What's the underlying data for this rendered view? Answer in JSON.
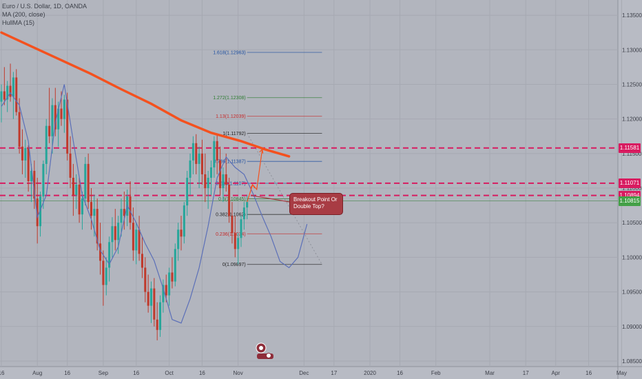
{
  "legend": {
    "symbol": "Euro / U.S. Dollar, 1D, OANDA",
    "ma": "MA (200, close)",
    "hull": "HullMA (15)"
  },
  "colors": {
    "background": "#b2b5be",
    "grid": "#a6a9b2",
    "up_candle": "#26a69a",
    "down_candle": "#c0392b",
    "ma200": "#f4511e",
    "hull": "#5b6fb8",
    "red_line": "#d81b60",
    "callout": "#a83c44"
  },
  "callout": {
    "text_line1": "Breakout Point Or",
    "text_line2": "Double Top?"
  },
  "price_tags": [
    {
      "label": "1.11581",
      "price": 1.11581,
      "color": "#d81b60"
    },
    {
      "label": "1.11071",
      "price": 1.11071,
      "color": "#d81b60"
    },
    {
      "label": "1.10894",
      "price": 1.10894,
      "color": "#d81b60"
    },
    {
      "label": "1.10815",
      "price": 1.10815,
      "color": "#43a047"
    }
  ],
  "chart_data": {
    "type": "candlestick",
    "title": "Euro / U.S. Dollar, 1D, OANDA",
    "ylim": [
      1.0842,
      1.1372
    ],
    "y_ticks": [
      {
        "value": 1.135,
        "label": "1.13500"
      },
      {
        "value": 1.13,
        "label": "1.13000"
      },
      {
        "value": 1.125,
        "label": "1.12500"
      },
      {
        "value": 1.12,
        "label": "1.12000"
      },
      {
        "value": 1.115,
        "label": "1.11500"
      },
      {
        "value": 1.11,
        "label": "1.11000"
      },
      {
        "value": 1.105,
        "label": "1.10500"
      },
      {
        "value": 1.1,
        "label": "1.10000"
      },
      {
        "value": 1.095,
        "label": "1.09500"
      },
      {
        "value": 1.09,
        "label": "1.09000"
      },
      {
        "value": 1.085,
        "label": "1.08500"
      }
    ],
    "x_ticks": [
      {
        "label": "16",
        "bar": 0
      },
      {
        "label": "Aug",
        "bar": 12
      },
      {
        "label": "16",
        "bar": 22
      },
      {
        "label": "Sep",
        "bar": 34
      },
      {
        "label": "16",
        "bar": 45
      },
      {
        "label": "Oct",
        "bar": 56
      },
      {
        "label": "16",
        "bar": 67
      },
      {
        "label": "Nov",
        "bar": 79
      },
      {
        "label": "Dec",
        "bar": 101
      },
      {
        "label": "17",
        "bar": 111
      },
      {
        "label": "2020",
        "bar": 123
      },
      {
        "label": "16",
        "bar": 133
      },
      {
        "label": "Feb",
        "bar": 145
      },
      {
        "label": "Mar",
        "bar": 163
      },
      {
        "label": "17",
        "bar": 175
      },
      {
        "label": "Apr",
        "bar": 185
      },
      {
        "label": "16",
        "bar": 196
      },
      {
        "label": "May",
        "bar": 207
      }
    ],
    "horizontal_levels": [
      1.11581,
      1.11071,
      1.10894,
      1.10815
    ],
    "fib_levels": [
      {
        "ratio": "1.618",
        "label": "1.618(1.12963)",
        "price": 1.12963,
        "color": "#1e4fa0"
      },
      {
        "ratio": "1.272",
        "label": "1.272(1.12308)",
        "price": 1.12308,
        "color": "#2e7d32"
      },
      {
        "ratio": "1.13",
        "label": "1.13(1.12039)",
        "price": 1.12039,
        "color": "#c62828"
      },
      {
        "ratio": "1",
        "label": "1(1.11792)",
        "price": 1.11792,
        "color": "#222222"
      },
      {
        "ratio": "0.786",
        "label": "0.786(1.11387)",
        "price": 1.11387,
        "color": "#1e4fa0"
      },
      {
        "ratio": "0.618",
        "label": "0.618(1.1107)",
        "price": 1.1107,
        "color": "#1e4fa0"
      },
      {
        "ratio": "0.5",
        "label": "0.5(1.10845)",
        "price": 1.10845,
        "color": "#2e7d32"
      },
      {
        "ratio": "0.382",
        "label": "0.382(1.1062)",
        "price": 1.1062,
        "color": "#222222"
      },
      {
        "ratio": "0.236",
        "label": "0.236(1.1034)",
        "price": 1.1034,
        "color": "#c62828"
      },
      {
        "ratio": "0",
        "label": "0(1.09897)",
        "price": 1.09897,
        "color": "#222222"
      }
    ],
    "fib_start_bar": 82,
    "fib_end_bar": 107,
    "ma200": [
      [
        0,
        1.1325
      ],
      [
        10,
        1.1305
      ],
      [
        20,
        1.1285
      ],
      [
        30,
        1.1265
      ],
      [
        40,
        1.1243
      ],
      [
        50,
        1.1222
      ],
      [
        60,
        1.1198
      ],
      [
        70,
        1.118
      ],
      [
        80,
        1.1168
      ],
      [
        88,
        1.1156
      ],
      [
        96,
        1.1146
      ]
    ],
    "hull": [
      [
        0,
        1.1218
      ],
      [
        3,
        1.1238
      ],
      [
        6,
        1.122
      ],
      [
        9,
        1.1168
      ],
      [
        12,
        1.1058
      ],
      [
        15,
        1.109
      ],
      [
        18,
        1.1195
      ],
      [
        21,
        1.125
      ],
      [
        24,
        1.1168
      ],
      [
        27,
        1.109
      ],
      [
        30,
        1.1055
      ],
      [
        33,
        1.101
      ],
      [
        36,
        1.099
      ],
      [
        39,
        1.1015
      ],
      [
        42,
        1.1075
      ],
      [
        45,
        1.105
      ],
      [
        48,
        1.102
      ],
      [
        51,
        1.0995
      ],
      [
        54,
        1.0955
      ],
      [
        57,
        1.091
      ],
      [
        60,
        1.0905
      ],
      [
        63,
        1.094
      ],
      [
        66,
        1.0985
      ],
      [
        69,
        1.1045
      ],
      [
        72,
        1.1115
      ],
      [
        75,
        1.1145
      ],
      [
        78,
        1.113
      ],
      [
        81,
        1.112
      ],
      [
        84,
        1.1092
      ],
      [
        87,
        1.106
      ],
      [
        90,
        1.103
      ],
      [
        93,
        1.0994
      ],
      [
        96,
        1.0985
      ],
      [
        99,
        1.1
      ],
      [
        102,
        1.1048
      ]
    ],
    "candles": [
      [
        1.1225,
        1.125,
        1.1195,
        1.124
      ],
      [
        1.124,
        1.1275,
        1.122,
        1.1228
      ],
      [
        1.1228,
        1.1255,
        1.121,
        1.1248
      ],
      [
        1.1248,
        1.128,
        1.1225,
        1.1232
      ],
      [
        1.1232,
        1.1268,
        1.12,
        1.126
      ],
      [
        1.126,
        1.1272,
        1.1205,
        1.121
      ],
      [
        1.121,
        1.123,
        1.115,
        1.116
      ],
      [
        1.116,
        1.1185,
        1.112,
        1.114
      ],
      [
        1.114,
        1.117,
        1.1115,
        1.1158
      ],
      [
        1.1158,
        1.1162,
        1.1095,
        1.111
      ],
      [
        1.111,
        1.1135,
        1.108,
        1.1125
      ],
      [
        1.1125,
        1.114,
        1.107,
        1.1085
      ],
      [
        1.1085,
        1.1115,
        1.102,
        1.1045
      ],
      [
        1.1045,
        1.1095,
        1.103,
        1.1088
      ],
      [
        1.1088,
        1.114,
        1.107,
        1.1135
      ],
      [
        1.1135,
        1.12,
        1.112,
        1.119
      ],
      [
        1.119,
        1.1245,
        1.1165,
        1.1175
      ],
      [
        1.1175,
        1.123,
        1.115,
        1.122
      ],
      [
        1.122,
        1.1245,
        1.1175,
        1.1185
      ],
      [
        1.1185,
        1.1225,
        1.116,
        1.1215
      ],
      [
        1.1215,
        1.124,
        1.119,
        1.12
      ],
      [
        1.12,
        1.1235,
        1.118,
        1.1228
      ],
      [
        1.1228,
        1.1238,
        1.114,
        1.115
      ],
      [
        1.115,
        1.1175,
        1.11,
        1.1115
      ],
      [
        1.1115,
        1.1135,
        1.106,
        1.109
      ],
      [
        1.109,
        1.112,
        1.107,
        1.1105
      ],
      [
        1.1105,
        1.1115,
        1.105,
        1.1062
      ],
      [
        1.1062,
        1.1095,
        1.104,
        1.1085
      ],
      [
        1.1085,
        1.1145,
        1.1075,
        1.1135
      ],
      [
        1.1135,
        1.115,
        1.107,
        1.108
      ],
      [
        1.108,
        1.11,
        1.104,
        1.106
      ],
      [
        1.106,
        1.109,
        1.103,
        1.107
      ],
      [
        1.107,
        1.1085,
        1.101,
        1.102
      ],
      [
        1.102,
        1.105,
        1.0975,
        1.0995
      ],
      [
        1.0995,
        1.101,
        1.093,
        1.096
      ],
      [
        1.096,
        1.1,
        1.0945,
        1.0985
      ],
      [
        1.0985,
        1.103,
        1.0965,
        1.1022
      ],
      [
        1.1022,
        1.1058,
        1.1,
        1.1045
      ],
      [
        1.1045,
        1.107,
        1.101,
        1.1025
      ],
      [
        1.1025,
        1.106,
        1.1005,
        1.105
      ],
      [
        1.105,
        1.1085,
        1.103,
        1.107
      ],
      [
        1.107,
        1.1095,
        1.104,
        1.106
      ],
      [
        1.106,
        1.1098,
        1.1045,
        1.1088
      ],
      [
        1.1088,
        1.111,
        1.104,
        1.105
      ],
      [
        1.105,
        1.1072,
        1.0995,
        1.101
      ],
      [
        1.101,
        1.105,
        1.099,
        1.104
      ],
      [
        1.104,
        1.106,
        1.0995,
        1.1005
      ],
      [
        1.1005,
        1.103,
        1.097,
        1.0985
      ],
      [
        1.0985,
        1.1,
        1.0935,
        1.095
      ],
      [
        1.095,
        1.0975,
        1.092,
        1.093
      ],
      [
        1.093,
        1.0965,
        1.0905,
        1.0955
      ],
      [
        1.0955,
        1.097,
        1.09,
        1.091
      ],
      [
        1.091,
        1.0935,
        1.088,
        1.0895
      ],
      [
        1.0895,
        1.0945,
        1.0885,
        1.0935
      ],
      [
        1.0935,
        1.0968,
        1.092,
        1.096
      ],
      [
        1.096,
        1.0975,
        1.0935,
        1.0945
      ],
      [
        1.0945,
        1.0985,
        1.093,
        1.0978
      ],
      [
        1.0978,
        1.1,
        1.0955,
        1.0965
      ],
      [
        1.0965,
        1.102,
        1.0958,
        1.1012
      ],
      [
        1.1012,
        1.105,
        1.0995,
        1.104
      ],
      [
        1.104,
        1.106,
        1.101,
        1.103
      ],
      [
        1.103,
        1.108,
        1.102,
        1.1075
      ],
      [
        1.1075,
        1.1125,
        1.106,
        1.1115
      ],
      [
        1.1115,
        1.115,
        1.109,
        1.114
      ],
      [
        1.114,
        1.1175,
        1.112,
        1.1165
      ],
      [
        1.1165,
        1.1178,
        1.112,
        1.1135
      ],
      [
        1.1135,
        1.116,
        1.11,
        1.115
      ],
      [
        1.115,
        1.117,
        1.1105,
        1.112
      ],
      [
        1.112,
        1.115,
        1.108,
        1.11
      ],
      [
        1.11,
        1.1125,
        1.107,
        1.1115
      ],
      [
        1.1115,
        1.114,
        1.109,
        1.113
      ],
      [
        1.113,
        1.1175,
        1.1115,
        1.1168
      ],
      [
        1.1168,
        1.1179,
        1.112,
        1.114
      ],
      [
        1.114,
        1.116,
        1.109,
        1.11
      ],
      [
        1.11,
        1.113,
        1.108,
        1.112
      ],
      [
        1.112,
        1.115,
        1.1095,
        1.1105
      ],
      [
        1.1105,
        1.1115,
        1.105,
        1.106
      ],
      [
        1.106,
        1.108,
        1.102,
        1.1035
      ],
      [
        1.1035,
        1.106,
        1.1,
        1.1012
      ],
      [
        1.1012,
        1.1035,
        1.099,
        1.1028
      ],
      [
        1.1028,
        1.106,
        1.1015,
        1.1055
      ],
      [
        1.1055,
        1.108,
        1.104,
        1.1072
      ],
      [
        1.1072,
        1.109,
        1.1055,
        1.108
      ]
    ]
  }
}
